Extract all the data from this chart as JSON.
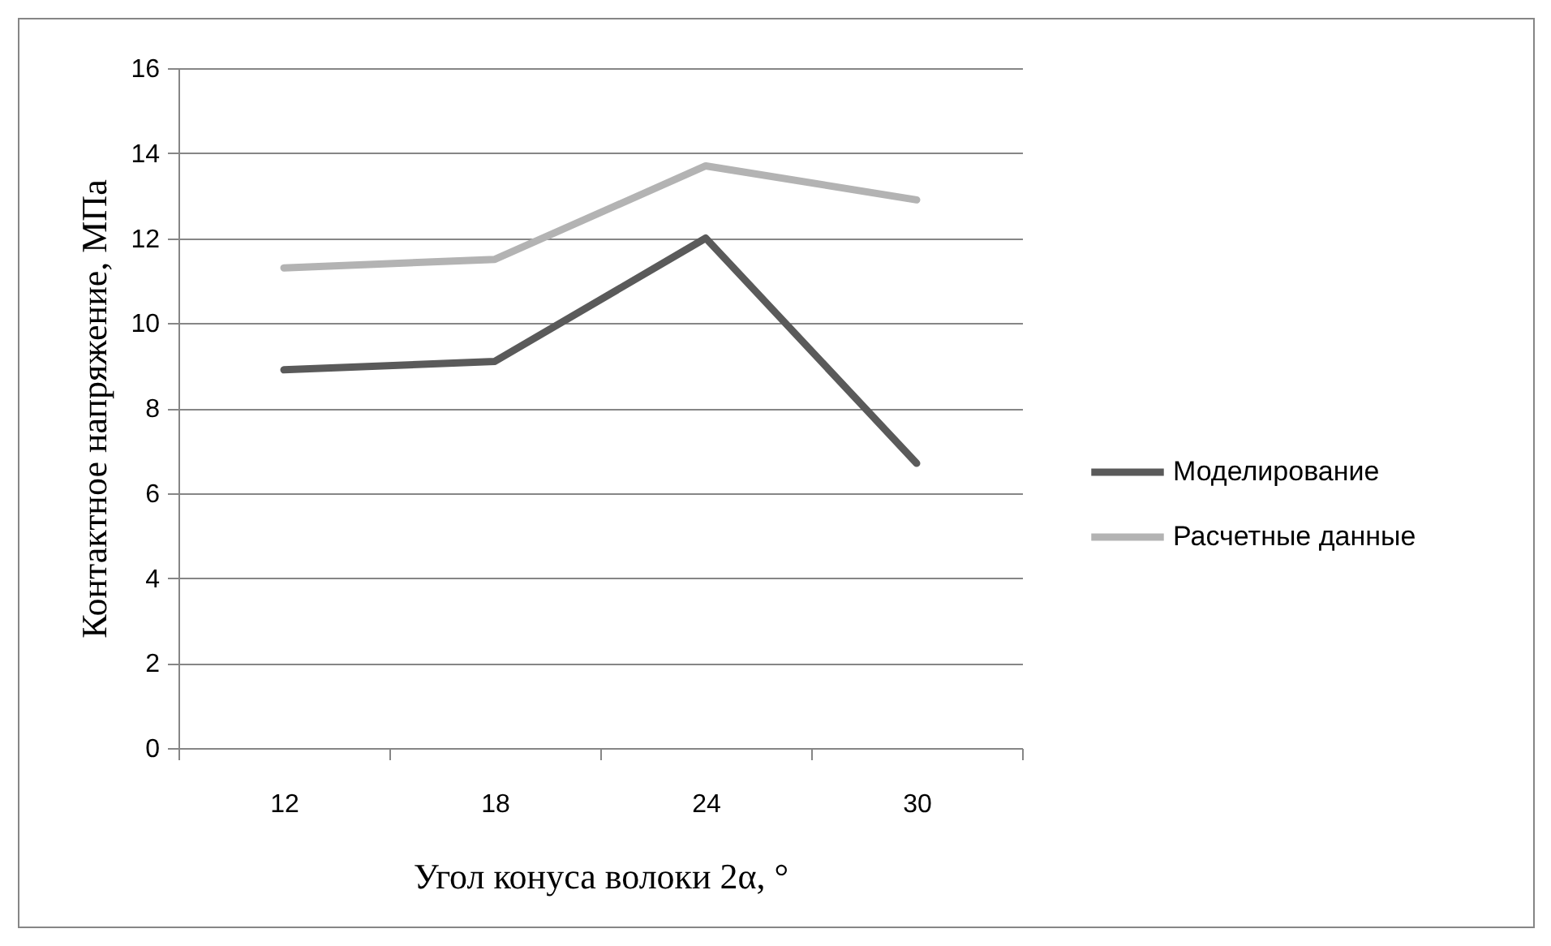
{
  "chart_data": {
    "type": "line",
    "xlabel": "Угол конуса волоки 2α, °",
    "ylabel": "Контактное напряжение, МПа",
    "categories": [
      "12",
      "18",
      "24",
      "30"
    ],
    "series": [
      {
        "name": "Моделирование",
        "color": "#5a5a5a",
        "values": [
          8.9,
          9.1,
          12,
          6.7
        ]
      },
      {
        "name": "Расчетные данные",
        "color": "#b3b3b3",
        "values": [
          11.3,
          11.5,
          13.7,
          12.9
        ]
      }
    ],
    "ylim": [
      0,
      16
    ],
    "yticks": [
      0,
      2,
      4,
      6,
      8,
      10,
      12,
      14,
      16
    ],
    "grid": "y",
    "legend": "right",
    "line_style": "solid"
  }
}
